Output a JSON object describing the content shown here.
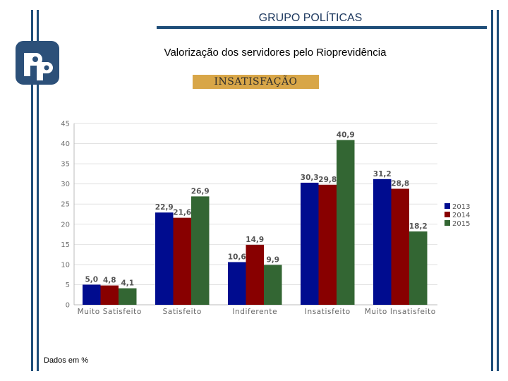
{
  "header": {
    "title": "GRUPO POLÍTICAS"
  },
  "subtitle": "Valorização dos servidores pelo Rioprevidência",
  "tag": "INSATISFAÇÃO",
  "footer": "Dados em %",
  "colors": {
    "frame": "#1f4e79",
    "tag_bg": "#d8a648",
    "s2013": "#000c8f",
    "s2014": "#880000",
    "s2015": "#336633"
  },
  "logo": {
    "icon": "rioprevidencia-logo-icon"
  },
  "chart_data": {
    "type": "bar",
    "title": "Valorização dos servidores pelo Rioprevidência",
    "xlabel": "",
    "ylabel": "",
    "ylim": [
      0,
      45
    ],
    "yticks": [
      0,
      5,
      10,
      15,
      20,
      25,
      30,
      35,
      40,
      45
    ],
    "grid": true,
    "legend_position": "right",
    "categories": [
      "Muito Satisfeito",
      "Satisfeito",
      "Indiferente",
      "Insatisfeito",
      "Muito Insatisfeito"
    ],
    "series": [
      {
        "name": "2013",
        "color": "#000c8f",
        "values": [
          5.0,
          22.9,
          10.6,
          30.3,
          31.2
        ],
        "labels": [
          "5,0",
          "22,9",
          "10,6",
          "30,3",
          "31,2"
        ]
      },
      {
        "name": "2014",
        "color": "#880000",
        "values": [
          4.8,
          21.6,
          14.9,
          29.8,
          28.8
        ],
        "labels": [
          "4,8",
          "21,6",
          "14,9",
          "29,8",
          "28,8"
        ]
      },
      {
        "name": "2015",
        "color": "#336633",
        "values": [
          4.1,
          26.9,
          9.9,
          40.9,
          18.2
        ],
        "labels": [
          "4,1",
          "26,9",
          "9,9",
          "40,9",
          "18,2"
        ]
      }
    ]
  }
}
